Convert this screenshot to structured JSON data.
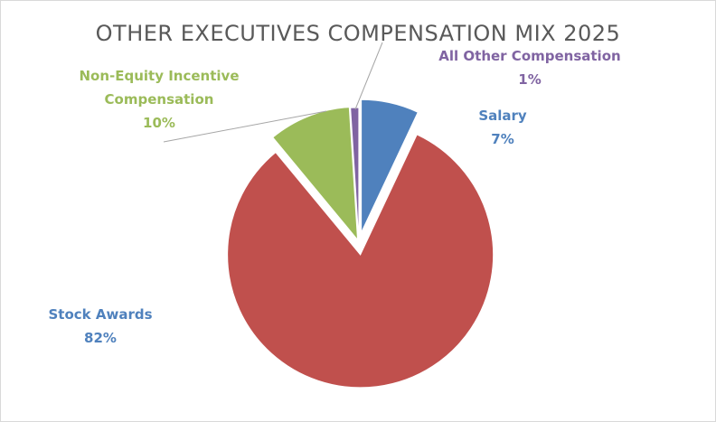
{
  "chart_data": {
    "type": "pie",
    "title": "OTHER EXECUTIVES COMPENSATION MIX 2025",
    "categories": [
      "Salary",
      "Stock Awards",
      "Non-Equity Incentive Compensation",
      "All Other Compensation"
    ],
    "values": [
      7,
      82,
      10,
      1
    ],
    "value_labels": [
      "7%",
      "82%",
      "10%",
      "1%"
    ],
    "colors": [
      "#4f81bd",
      "#c0504d",
      "#9bbb59",
      "#8064a2"
    ],
    "label_colors": [
      "#4f81bd",
      "#4f81bd",
      "#9bbb59",
      "#8064a2"
    ]
  }
}
